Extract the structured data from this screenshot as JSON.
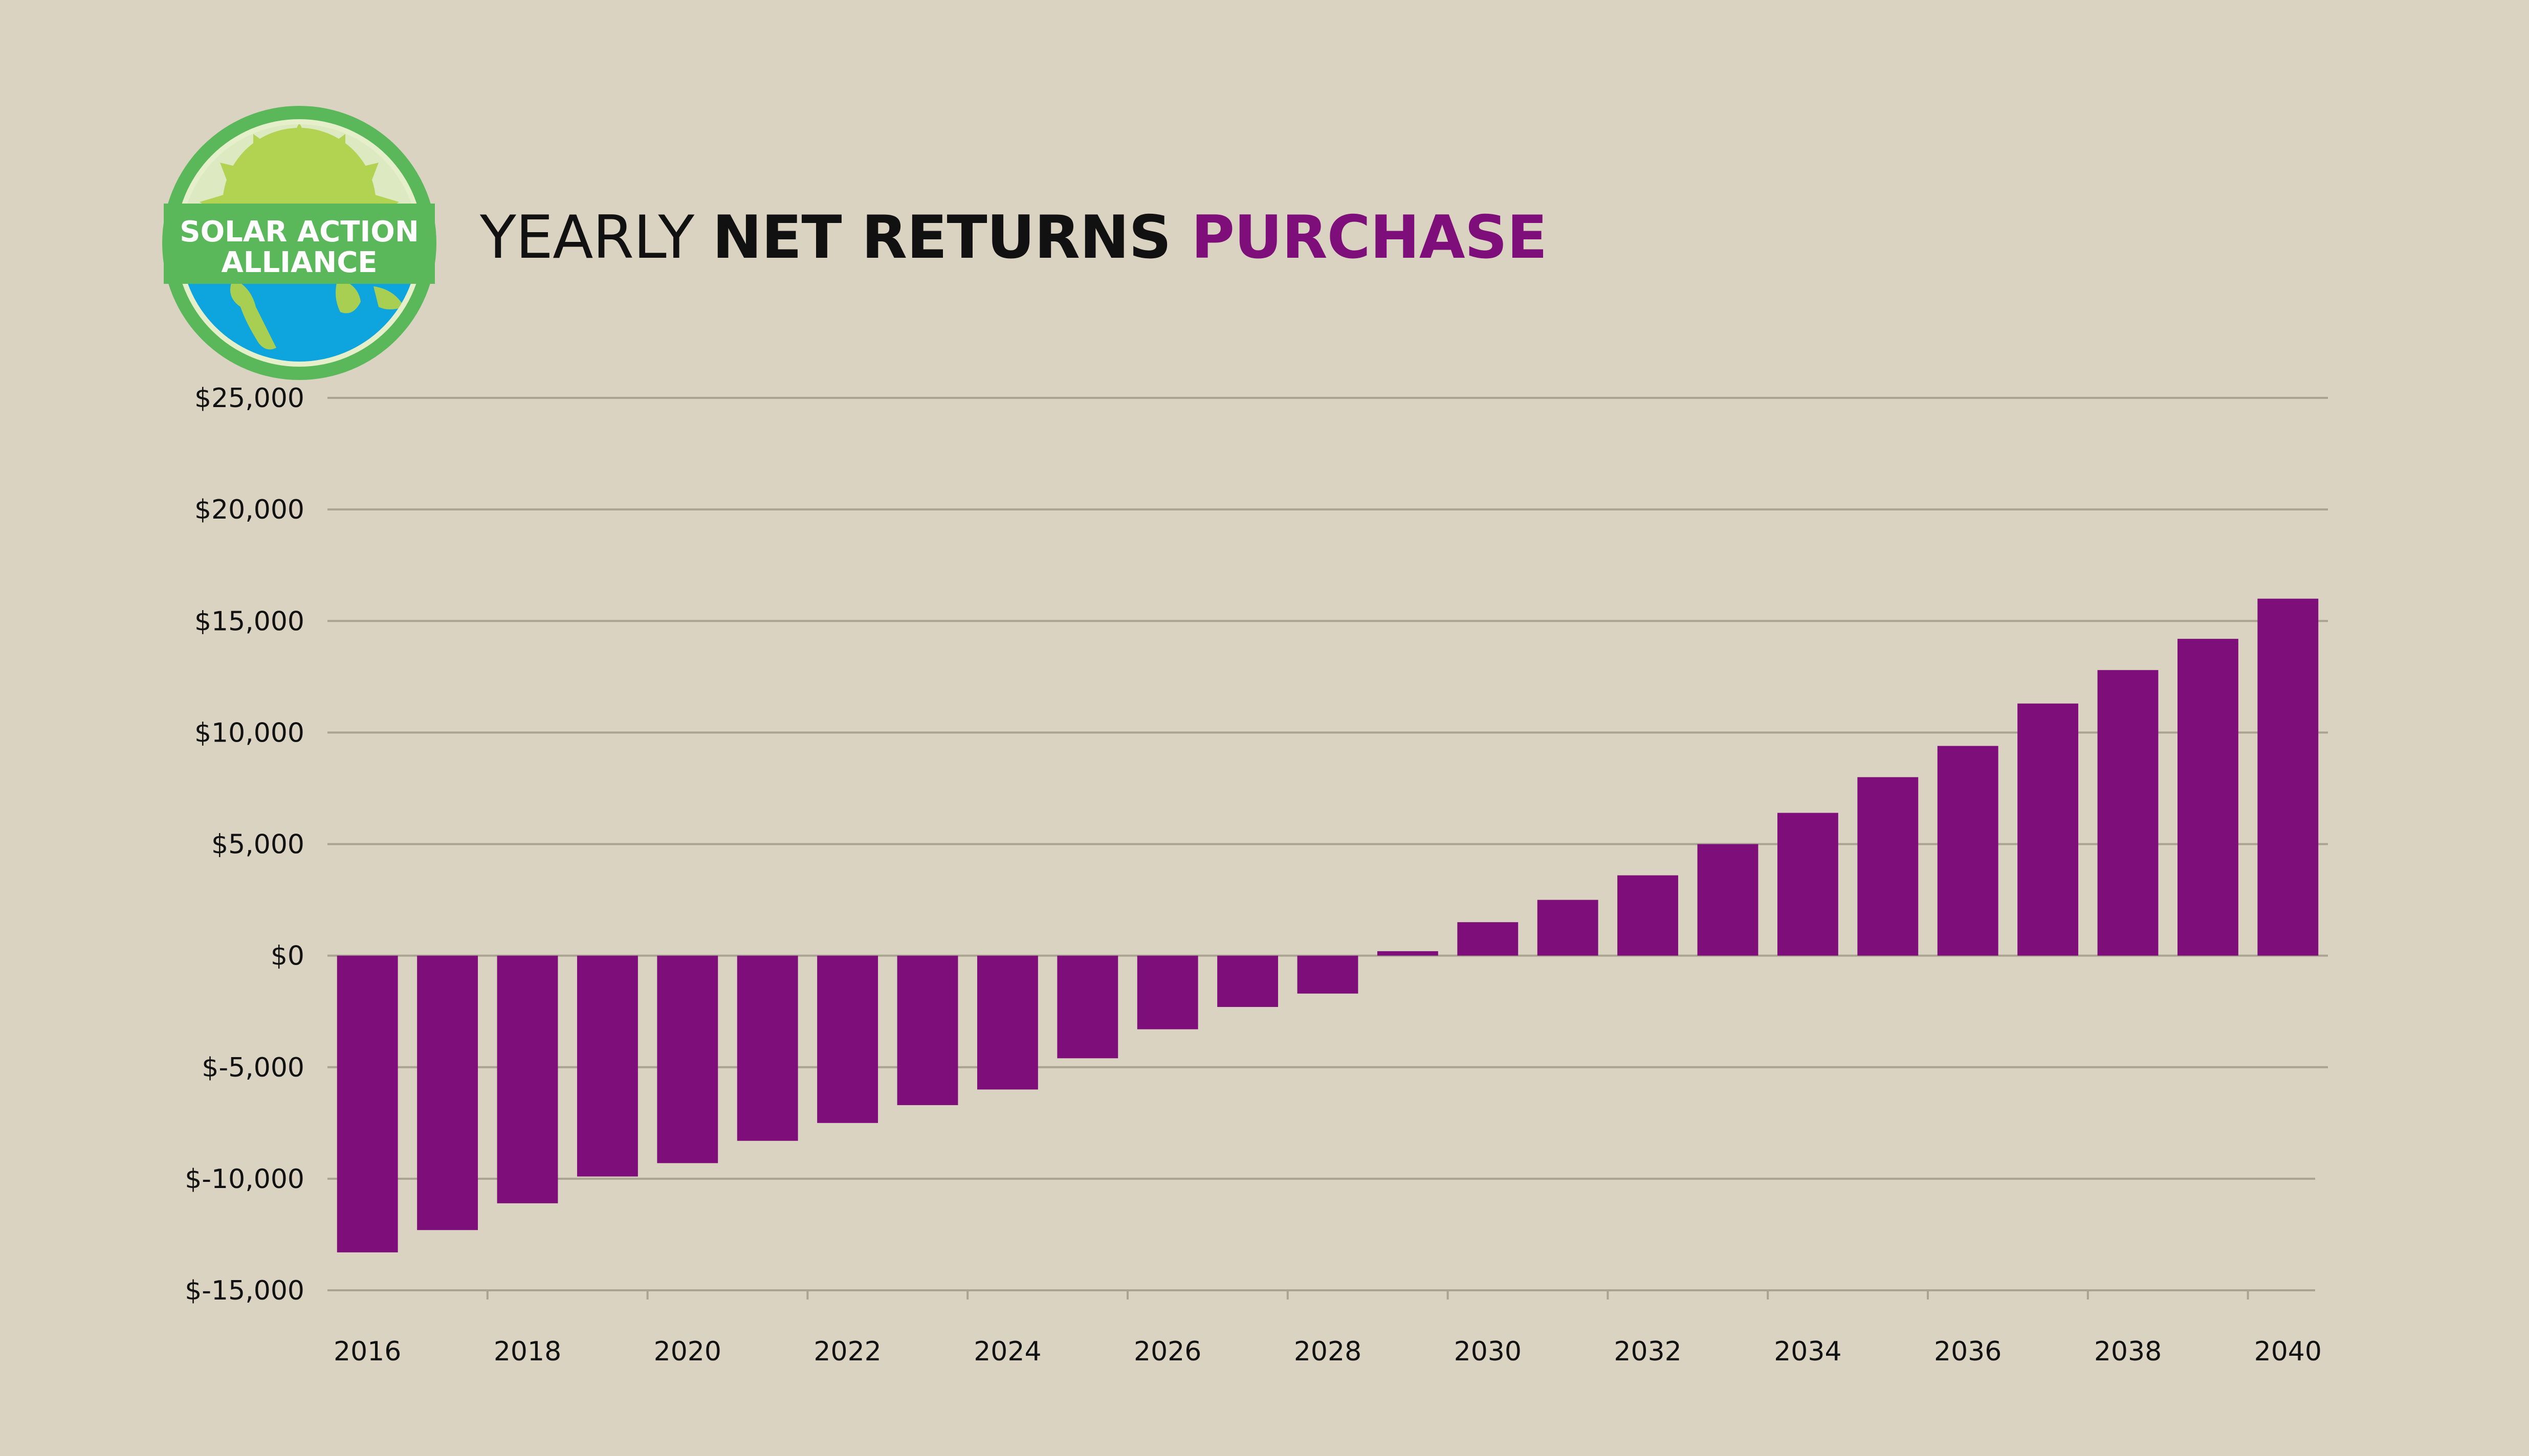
{
  "logo": {
    "line1": "SOLAR ACTION",
    "line2": "ALLIANCE",
    "ring_color": "#5bb85a",
    "sun_color": "#b2d252",
    "earth_water_color": "#0ea5de",
    "earth_land_color": "#a8cf52"
  },
  "title": {
    "part1": "YEARLY ",
    "part2": "NET RETURNS ",
    "part3": "PURCHASE",
    "accent_color": "#7d0e7a"
  },
  "chart_data": {
    "type": "bar",
    "title": "YEARLY NET RETURNS PURCHASE",
    "xlabel": "",
    "ylabel": "",
    "categories": [
      "2016",
      "2017",
      "2018",
      "2019",
      "2020",
      "2021",
      "2022",
      "2023",
      "2024",
      "2025",
      "2026",
      "2027",
      "2028",
      "2029",
      "2030",
      "2031",
      "2032",
      "2033",
      "2034",
      "2035",
      "2036",
      "2037",
      "2038",
      "2039",
      "2040"
    ],
    "x_tick_labels": [
      "2016",
      "2018",
      "2020",
      "2022",
      "2024",
      "2026",
      "2028",
      "2030",
      "2032",
      "2034",
      "2036",
      "2038",
      "2040"
    ],
    "values": [
      -13300,
      -12300,
      -11100,
      -9900,
      -9300,
      -8300,
      -7500,
      -6700,
      -6000,
      -4600,
      -3300,
      -2300,
      -1700,
      200,
      1500,
      2500,
      3600,
      5000,
      6400,
      8000,
      9400,
      11300,
      12800,
      14200,
      16000
    ],
    "ylim": [
      -15000,
      25000
    ],
    "y_ticks": [
      25000,
      20000,
      15000,
      10000,
      5000,
      0,
      -5000,
      -10000,
      -15000
    ],
    "y_tick_labels": [
      "$25,000",
      "$20,000",
      "$15,000",
      "$10,000",
      "$5,000",
      "$0",
      "$-5,000",
      "$-10,000",
      "$-15,000"
    ],
    "grid": true,
    "legend": "none",
    "bar_color": "#7d0e7a",
    "grid_color": "#aaa391"
  }
}
